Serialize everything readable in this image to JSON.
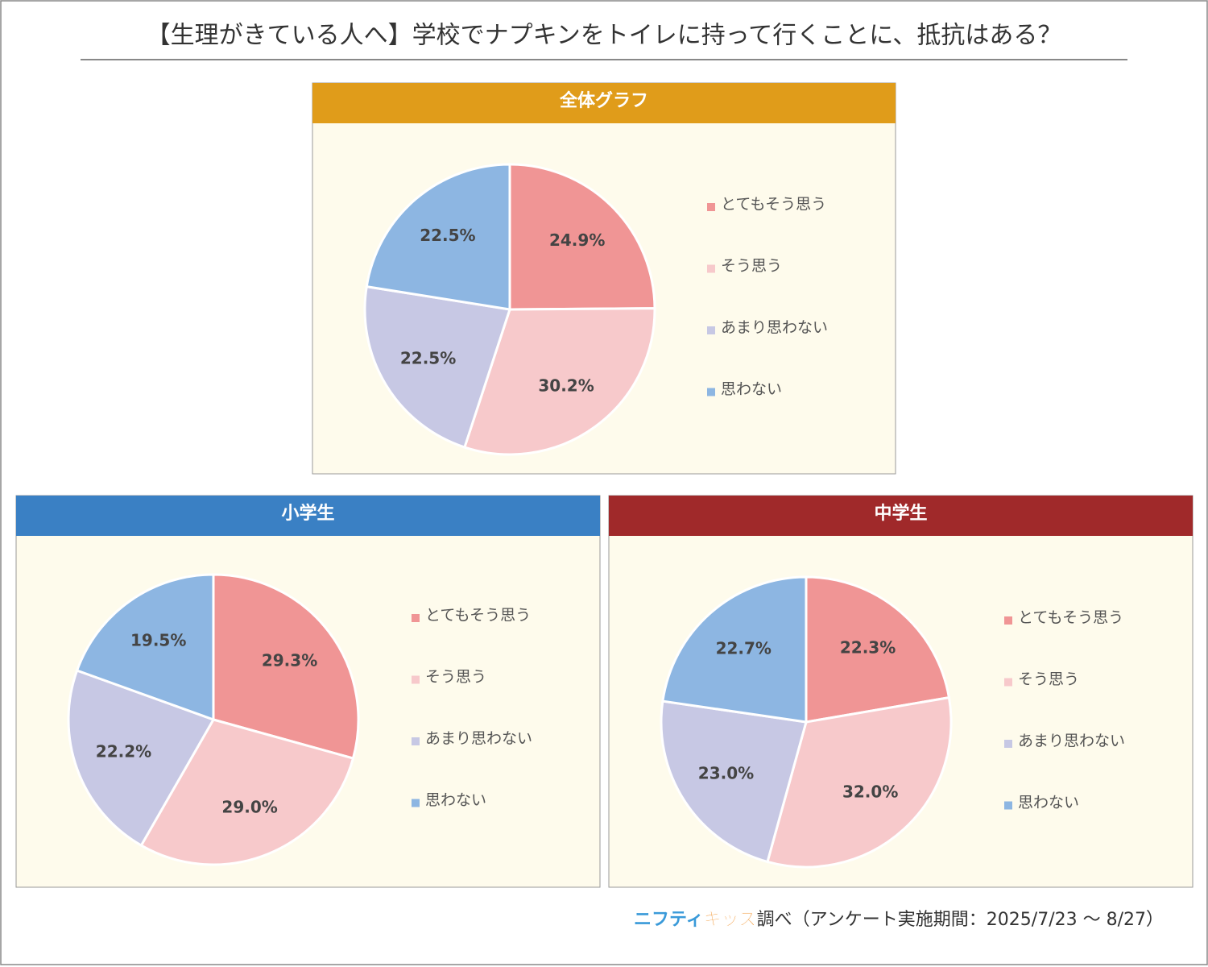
{
  "title": "【生理がきている人へ】学校でナプキンをトイレに持って行くことに、抵抗はある？",
  "chart_data": [
    {
      "type": "pie",
      "title": "全体グラフ",
      "header_color": "#e09c1a",
      "categories": [
        "とてもそう思う",
        "そう思う",
        "あまり思わない",
        "思わない"
      ],
      "values": [
        24.9,
        30.2,
        22.5,
        22.5
      ],
      "value_labels": [
        "24.9%",
        "30.2%",
        "22.5%",
        "22.5%"
      ],
      "colors": [
        "#f09595",
        "#f7c9cb",
        "#c7c8e4",
        "#8db6e2"
      ]
    },
    {
      "type": "pie",
      "title": "小学生",
      "header_color": "#3a80c4",
      "categories": [
        "とてもそう思う",
        "そう思う",
        "あまり思わない",
        "思わない"
      ],
      "values": [
        29.3,
        29.0,
        22.2,
        19.5
      ],
      "value_labels": [
        "29.3%",
        "29.0%",
        "22.2%",
        "19.5%"
      ],
      "colors": [
        "#f09595",
        "#f7c9cb",
        "#c7c8e4",
        "#8db6e2"
      ]
    },
    {
      "type": "pie",
      "title": "中学生",
      "header_color": "#a0292a",
      "categories": [
        "とてもそう思う",
        "そう思う",
        "あまり思わない",
        "思わない"
      ],
      "values": [
        22.3,
        32.0,
        23.0,
        22.7
      ],
      "value_labels": [
        "22.3%",
        "32.0%",
        "23.0%",
        "22.7%"
      ],
      "colors": [
        "#f09595",
        "#f7c9cb",
        "#c7c8e4",
        "#8db6e2"
      ]
    }
  ],
  "footer": {
    "brand": [
      "ニフティ",
      "キッズ"
    ],
    "text": "調べ（アンケート実施期間：2025/7/23 〜 8/27）"
  }
}
